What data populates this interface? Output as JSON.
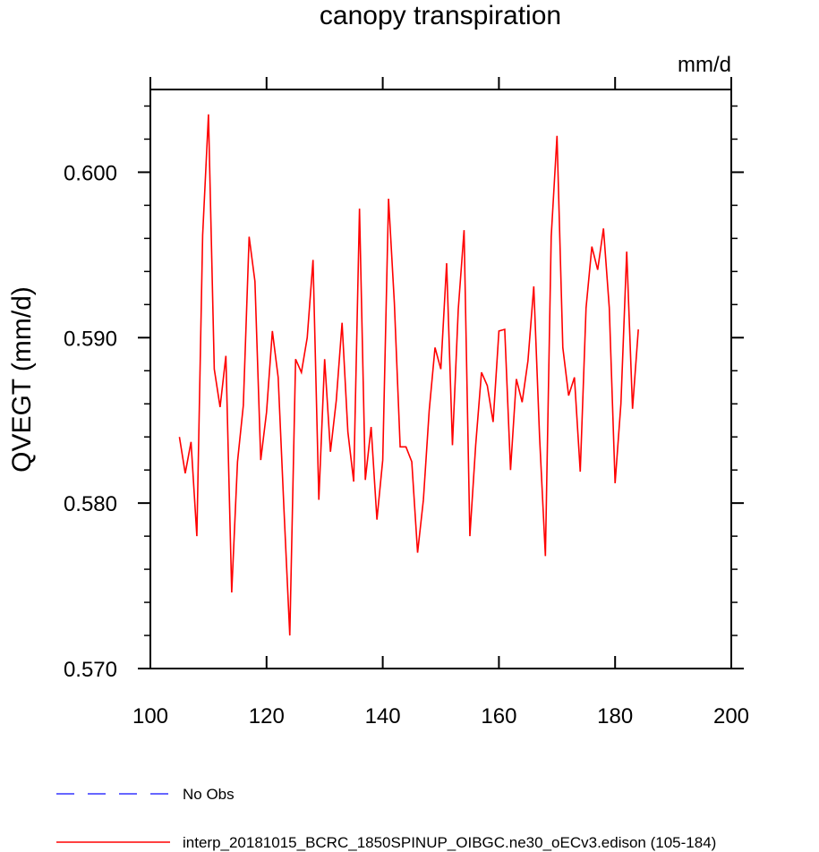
{
  "chart_data": {
    "type": "line",
    "title": "canopy transpiration",
    "units": "mm/d",
    "xlabel": "",
    "ylabel": "QVEGT  (mm/d)",
    "xlim": [
      100,
      200
    ],
    "ylim": [
      0.57,
      0.605
    ],
    "xticks": [
      100,
      120,
      140,
      160,
      180,
      200
    ],
    "xtick_labels": [
      "100",
      "120",
      "140",
      "160",
      "180",
      "200"
    ],
    "yticks": [
      0.57,
      0.58,
      0.59,
      0.6
    ],
    "ytick_labels": [
      "0.570",
      "0.580",
      "0.590",
      "0.600"
    ],
    "grid": false,
    "legend_position": "bottom-left",
    "series": [
      {
        "name": "interp_20181015_BCRC_1850SPINUP_OIBGC.ne30_oECv3.edison (105-184)",
        "color": "#ff0000",
        "style": "solid",
        "x": [
          105,
          106,
          107,
          108,
          109,
          110,
          111,
          112,
          113,
          114,
          115,
          116,
          117,
          118,
          119,
          120,
          121,
          122,
          123,
          124,
          125,
          126,
          127,
          128,
          129,
          130,
          131,
          132,
          133,
          134,
          135,
          136,
          137,
          138,
          139,
          140,
          141,
          142,
          143,
          144,
          145,
          146,
          147,
          148,
          149,
          150,
          151,
          152,
          153,
          154,
          155,
          156,
          157,
          158,
          159,
          160,
          161,
          162,
          163,
          164,
          165,
          166,
          167,
          168,
          169,
          170,
          171,
          172,
          173,
          174,
          175,
          176,
          177,
          178,
          179,
          180,
          181,
          182,
          183,
          184
        ],
        "values": [
          0.584,
          0.5818,
          0.5837,
          0.578,
          0.5962,
          0.6035,
          0.5881,
          0.5858,
          0.5889,
          0.5746,
          0.5825,
          0.5859,
          0.5961,
          0.5934,
          0.5826,
          0.5855,
          0.5904,
          0.5876,
          0.5796,
          0.572,
          0.5887,
          0.5879,
          0.59,
          0.5947,
          0.5802,
          0.5887,
          0.5831,
          0.5862,
          0.5909,
          0.5843,
          0.5813,
          0.5978,
          0.5814,
          0.5846,
          0.579,
          0.5826,
          0.5984,
          0.5921,
          0.5834,
          0.5834,
          0.5825,
          0.577,
          0.5802,
          0.5856,
          0.5894,
          0.5881,
          0.5945,
          0.5835,
          0.5917,
          0.5965,
          0.578,
          0.5835,
          0.5879,
          0.5871,
          0.5849,
          0.5904,
          0.5905,
          0.582,
          0.5875,
          0.5861,
          0.5886,
          0.5931,
          0.584,
          0.5768,
          0.5961,
          0.6022,
          0.5894,
          0.5865,
          0.5876,
          0.5819,
          0.5918,
          0.5955,
          0.5941,
          0.5966,
          0.5918,
          0.5812,
          0.586,
          0.5952,
          0.5857,
          0.5905
        ]
      },
      {
        "name": "No Obs",
        "color": "#3333ff",
        "style": "dashed",
        "x": [],
        "values": []
      }
    ]
  }
}
